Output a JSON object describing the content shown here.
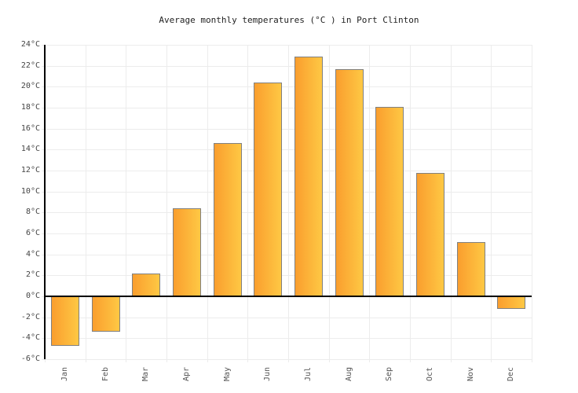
{
  "chart_data": {
    "type": "bar",
    "title": "Average monthly temperatures (°C ) in Port Clinton",
    "categories": [
      "Jan",
      "Feb",
      "Mar",
      "Apr",
      "May",
      "Jun",
      "Jul",
      "Aug",
      "Sep",
      "Oct",
      "Nov",
      "Dec"
    ],
    "values": [
      -4.7,
      -3.4,
      2.2,
      8.4,
      14.6,
      20.4,
      22.9,
      21.7,
      18.1,
      11.8,
      5.2,
      -1.2
    ],
    "unit": "°C",
    "xlabel": "",
    "ylabel": "",
    "ylim": [
      -6,
      24
    ],
    "ytick_step": 2,
    "ytick_labels": [
      "24°C",
      "22°C",
      "20°C",
      "18°C",
      "16°C",
      "14°C",
      "12°C",
      "10°C",
      "8°C",
      "6°C",
      "4°C",
      "2°C",
      "0°C",
      "-2°C",
      "-4°C",
      "-6°C"
    ],
    "grid": true,
    "legend_position": "none",
    "colors": {
      "bar_gradient_left": "#FA9E2E",
      "bar_gradient_right": "#FEC844",
      "bar_border": "#808080",
      "gridline": "#ECECEC",
      "axis": "#000000",
      "tick_label": "#444444",
      "month_label": "#555555",
      "title": "#222222",
      "background": "#FFFFFF"
    }
  }
}
